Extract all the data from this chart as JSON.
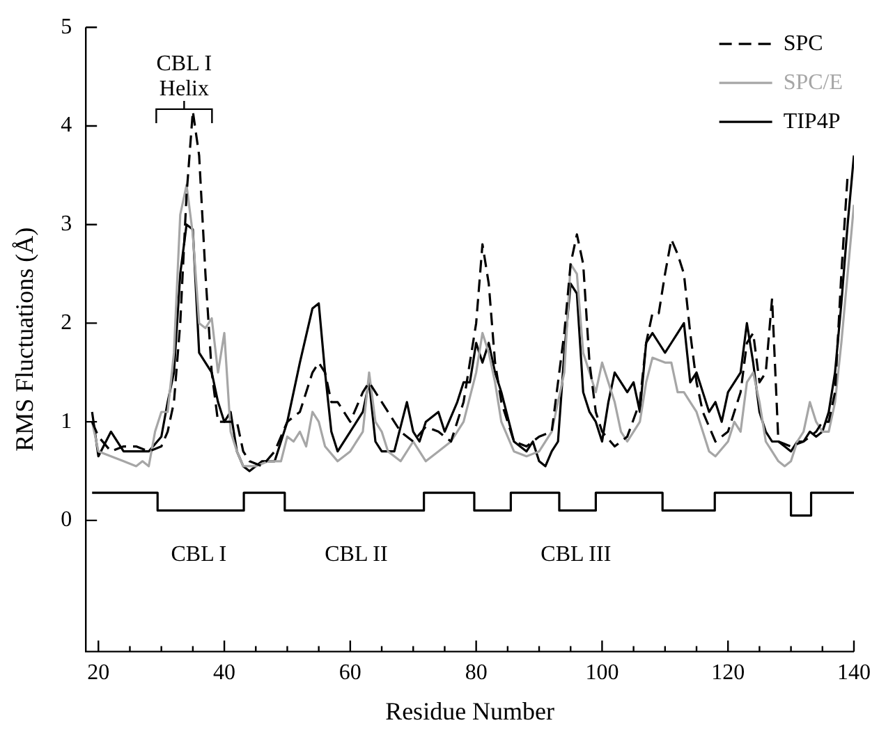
{
  "chart_data": {
    "type": "line",
    "xlabel": "Residue Number",
    "ylabel": "RMS Fluctuations (Å)",
    "xlim": [
      18,
      140
    ],
    "ylim": [
      -1.33,
      5
    ],
    "xticks": [
      20,
      {
        "value": 25,
        "label": null
      },
      {
        "value": 30,
        "label": null
      },
      {
        "value": 35,
        "label": null
      },
      40,
      {
        "value": 45,
        "label": null
      },
      {
        "value": 50,
        "label": null
      },
      {
        "value": 55,
        "label": null
      },
      60,
      {
        "value": 65,
        "label": null
      },
      {
        "value": 70,
        "label": null
      },
      {
        "value": 75,
        "label": null
      },
      80,
      {
        "value": 85,
        "label": null
      },
      {
        "value": 90,
        "label": null
      },
      {
        "value": 95,
        "label": null
      },
      100,
      {
        "value": 105,
        "label": null
      },
      {
        "value": 110,
        "label": null
      },
      {
        "value": 115,
        "label": null
      },
      120,
      {
        "value": 125,
        "label": null
      },
      {
        "value": 130,
        "label": null
      },
      {
        "value": 135,
        "label": null
      },
      140
    ],
    "yticks": [
      0,
      1,
      2,
      3,
      4,
      5
    ],
    "grid": false,
    "legend": "top right",
    "marker": "none",
    "series": [
      {
        "name": "SPC",
        "color": "#000000",
        "line_style": "dashed",
        "x": [
          19,
          20,
          22,
          24,
          26,
          28,
          30,
          31,
          32,
          33,
          34,
          35,
          36,
          37,
          38,
          39,
          40,
          42,
          43,
          44,
          46,
          48,
          50,
          52,
          54,
          55,
          56,
          57,
          58,
          60,
          62,
          63,
          64,
          66,
          68,
          70,
          72,
          74,
          76,
          78,
          80,
          81,
          82,
          83,
          84,
          86,
          88,
          90,
          92,
          94,
          95,
          96,
          97,
          98,
          99,
          100,
          102,
          104,
          106,
          107,
          108,
          109,
          110,
          111,
          112,
          113,
          114,
          115,
          116,
          118,
          120,
          122,
          123,
          124,
          125,
          126,
          127,
          128,
          130,
          132,
          134,
          135,
          136,
          137,
          138,
          139
        ],
        "values": [
          1.0,
          0.85,
          0.7,
          0.75,
          0.75,
          0.7,
          0.75,
          0.9,
          1.2,
          2.0,
          3.3,
          4.15,
          3.7,
          2.5,
          1.5,
          1.0,
          1.0,
          1.0,
          0.7,
          0.6,
          0.55,
          0.7,
          1.0,
          1.1,
          1.5,
          1.6,
          1.5,
          1.2,
          1.2,
          1.0,
          1.3,
          1.4,
          1.3,
          1.1,
          0.9,
          0.8,
          0.95,
          0.9,
          0.8,
          1.2,
          2.0,
          2.8,
          2.4,
          1.6,
          1.2,
          0.8,
          0.75,
          0.85,
          0.9,
          1.9,
          2.6,
          2.9,
          2.6,
          1.6,
          1.1,
          0.9,
          0.75,
          0.85,
          1.2,
          1.8,
          2.1,
          2.1,
          2.5,
          2.85,
          2.7,
          2.5,
          1.9,
          1.4,
          1.1,
          0.8,
          0.9,
          1.3,
          1.8,
          1.9,
          1.4,
          1.5,
          2.25,
          0.8,
          0.75,
          0.8,
          0.9,
          1.0,
          1.0,
          1.3,
          2.5,
          3.5
        ]
      },
      {
        "name": "SPC/E",
        "color": "#a6a6a6",
        "line_style": "solid",
        "x": [
          19,
          20,
          22,
          24,
          26,
          27,
          28,
          29,
          30,
          31,
          32,
          33,
          34,
          35,
          36,
          37,
          38,
          39,
          40,
          41,
          42,
          43,
          45,
          47,
          49,
          50,
          51,
          52,
          53,
          54,
          55,
          56,
          58,
          60,
          62,
          63,
          64,
          65,
          66,
          68,
          70,
          71,
          72,
          74,
          76,
          78,
          80,
          81,
          82,
          83,
          84,
          86,
          88,
          90,
          92,
          94,
          95,
          96,
          97,
          98,
          99,
          100,
          101,
          102,
          103,
          104,
          105,
          106,
          107,
          108,
          110,
          111,
          112,
          113,
          114,
          115,
          116,
          117,
          118,
          120,
          121,
          122,
          123,
          124,
          125,
          126,
          127,
          128,
          129,
          130,
          131,
          132,
          133,
          134,
          135,
          136,
          137,
          138,
          139,
          140
        ],
        "values": [
          1.0,
          0.7,
          0.65,
          0.6,
          0.55,
          0.6,
          0.55,
          0.9,
          1.1,
          1.1,
          1.7,
          3.1,
          3.4,
          2.9,
          2.0,
          1.95,
          2.05,
          1.5,
          1.9,
          0.9,
          0.7,
          0.55,
          0.55,
          0.6,
          0.6,
          0.85,
          0.8,
          0.9,
          0.75,
          1.1,
          1.0,
          0.75,
          0.6,
          0.7,
          0.9,
          1.5,
          1.0,
          0.9,
          0.7,
          0.6,
          0.8,
          0.7,
          0.6,
          0.7,
          0.8,
          1.0,
          1.5,
          1.9,
          1.7,
          1.4,
          1.0,
          0.7,
          0.65,
          0.7,
          0.9,
          1.5,
          2.6,
          2.5,
          1.7,
          1.5,
          1.3,
          1.6,
          1.4,
          1.2,
          0.9,
          0.8,
          0.9,
          1.0,
          1.4,
          1.65,
          1.6,
          1.6,
          1.3,
          1.3,
          1.2,
          1.1,
          0.9,
          0.7,
          0.65,
          0.8,
          1.0,
          0.9,
          1.4,
          1.5,
          1.2,
          0.8,
          0.7,
          0.6,
          0.55,
          0.6,
          0.8,
          0.9,
          1.2,
          1.0,
          0.9,
          0.9,
          1.2,
          1.8,
          2.5,
          3.2
        ]
      },
      {
        "name": "TIP4P",
        "color": "#000000",
        "line_style": "solid",
        "x": [
          19,
          20,
          22,
          24,
          26,
          28,
          30,
          31,
          32,
          33,
          34,
          35,
          36,
          37,
          38,
          39,
          40,
          41,
          42,
          43,
          44,
          46,
          48,
          50,
          52,
          54,
          55,
          56,
          57,
          58,
          60,
          62,
          63,
          64,
          65,
          67,
          69,
          70,
          71,
          72,
          74,
          75,
          77,
          78,
          79,
          80,
          81,
          82,
          83,
          84,
          86,
          88,
          89,
          90,
          91,
          92,
          93,
          94,
          95,
          96,
          97,
          98,
          99,
          100,
          101,
          102,
          103,
          104,
          105,
          106,
          107,
          108,
          109,
          110,
          111,
          112,
          113,
          114,
          115,
          116,
          117,
          118,
          119,
          120,
          122,
          123,
          124,
          125,
          126,
          127,
          128,
          129,
          130,
          131,
          132,
          133,
          134,
          135,
          136,
          137,
          138,
          139,
          140
        ],
        "values": [
          1.1,
          0.65,
          0.9,
          0.7,
          0.7,
          0.7,
          0.85,
          1.2,
          1.5,
          2.5,
          3.0,
          2.95,
          1.7,
          1.6,
          1.5,
          1.2,
          1.0,
          1.1,
          0.7,
          0.55,
          0.5,
          0.6,
          0.6,
          1.0,
          1.6,
          2.15,
          2.2,
          1.5,
          0.9,
          0.7,
          0.9,
          1.1,
          1.4,
          0.8,
          0.7,
          0.7,
          1.2,
          0.9,
          0.8,
          1.0,
          1.1,
          0.9,
          1.2,
          1.4,
          1.4,
          1.8,
          1.6,
          1.8,
          1.5,
          1.3,
          0.8,
          0.7,
          0.8,
          0.6,
          0.55,
          0.7,
          0.8,
          1.7,
          2.4,
          2.3,
          1.3,
          1.1,
          1.0,
          0.8,
          1.2,
          1.5,
          1.4,
          1.3,
          1.4,
          1.1,
          1.8,
          1.9,
          1.8,
          1.7,
          1.8,
          1.9,
          2.0,
          1.4,
          1.5,
          1.3,
          1.1,
          1.2,
          1.0,
          1.3,
          1.5,
          2.0,
          1.6,
          1.1,
          0.9,
          0.8,
          0.8,
          0.75,
          0.7,
          0.8,
          0.8,
          0.9,
          0.85,
          0.9,
          1.1,
          1.5,
          2.2,
          3.0,
          3.7
        ]
      },
      {
        "type": "step",
        "color": "#000000",
        "line_style": "solid",
        "x": [
          19,
          29.4,
          43.1,
          49.6,
          71.7,
          79.7,
          85.5,
          93.2,
          99,
          109.6,
          117.9,
          130,
          133.2,
          140
        ],
        "values": [
          0.28,
          0.1,
          0.28,
          0.1,
          0.28,
          0.1,
          0.28,
          0.1,
          0.28,
          0.1,
          0.28,
          0.05,
          0.28,
          0.28
        ]
      }
    ],
    "annotations": [
      "CBL I\nHelix",
      "CBL I",
      "CBL II",
      "CBL III"
    ]
  }
}
